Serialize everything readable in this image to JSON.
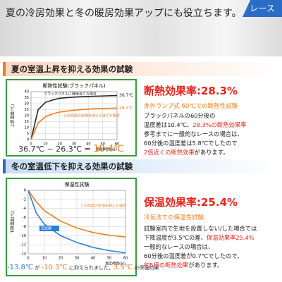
{
  "banner": {
    "title": "夏の冷房効果と冬の暖房効果アップにも役立ちます。",
    "tag": "レース"
  },
  "summer": {
    "header": "夏の室温上昇を抑える効果の試験",
    "chart": {
      "type": "line",
      "title": "断熱性試験(ブラックパネル)",
      "ylabel": "上昇温度(℃)",
      "xlabel": "照射時間(分)",
      "x": [
        0,
        5,
        10,
        15,
        20,
        30,
        40,
        50,
        60
      ],
      "xlim": [
        0,
        60
      ],
      "xticks": [
        0,
        10,
        20,
        30,
        40,
        50,
        60
      ],
      "ylim": [
        0,
        40
      ],
      "yticks": [
        0,
        5,
        10,
        15,
        20,
        25,
        30,
        35,
        40
      ],
      "grid": true,
      "series": [
        {
          "name": "ブラックパネルに直接当てた場合",
          "color": "#222222",
          "values": [
            0,
            25,
            31,
            33,
            34.5,
            35.5,
            36,
            36.4,
            36.7
          ],
          "end_label": "36.7℃"
        },
        {
          "name": "この商品の生地を挟んで当てた場合",
          "color": "#f07d1a",
          "values": [
            0,
            14,
            19,
            21.5,
            23,
            24.5,
            25.5,
            26,
            26.3
          ],
          "end_label": "26.3℃"
        }
      ]
    },
    "result": [
      {
        "text": "36.7℃ − 26.3℃ = ",
        "color": "#333333"
      },
      {
        "text": "10.4℃",
        "color": "#f07d1a"
      }
    ],
    "rate": "断熱効果率:28.3%",
    "method": "赤外ランプ式 60℃での断熱性試験",
    "body": [
      [
        {
          "text": "ブラックパネルの60分後の"
        }
      ],
      [
        {
          "text": "温度差は10.4℃、"
        },
        {
          "text": "28.3%の断熱効果率",
          "highlight": true
        }
      ],
      [
        {
          "text": "参考までに一般的なレースの場合は、"
        }
      ],
      [
        {
          "text": "60分後の温度差は5.8℃でしたので"
        }
      ],
      [
        {
          "text": "2倍近くの断熱効果",
          "highlight": true
        },
        {
          "text": "があります。"
        }
      ]
    ]
  },
  "winter": {
    "header": "冬の室温低下を抑える効果の試験",
    "chart": {
      "type": "line",
      "title": "保温性試験",
      "ylabel": "下降温度(℃)",
      "xlabel": "測定時間(分)",
      "x": [
        0,
        5,
        10,
        20,
        30,
        40,
        50,
        60
      ],
      "xlim": [
        0,
        60
      ],
      "xticks": [
        0,
        10,
        20,
        30,
        40,
        50,
        60
      ],
      "ylim": [
        -14,
        0
      ],
      "yticks": [
        0,
        -2,
        -4,
        -6,
        -8,
        -10,
        -12,
        -14
      ],
      "grid": true,
      "series": [
        {
          "name": "この商品の生地を挟んだ場合",
          "color": "#f07d1a",
          "values": [
            0,
            -2.5,
            -4.5,
            -6.8,
            -8.3,
            -9.3,
            -9.9,
            -10.3
          ]
        },
        {
          "name": "空試験",
          "color": "#2a7fd4",
          "values": [
            0,
            -5,
            -7.5,
            -10,
            -11.5,
            -12.6,
            -13.3,
            -13.8
          ]
        }
      ]
    },
    "result": [
      {
        "text": "-13.8℃",
        "color": "#2a7fd4",
        "big": true
      },
      {
        "text": " が ",
        "color": "#333333"
      },
      {
        "text": "-10.3℃",
        "color": "#f07d1a",
        "big": true
      },
      {
        "text": " に抑えられました。",
        "color": "#333333"
      },
      {
        "text": "3.5℃",
        "color": "#f07d1a",
        "big": true
      },
      {
        "text": " の保温効果",
        "color": "#333333"
      }
    ],
    "rate": "保温効果率:25.4%",
    "method": "冷気法での保温性試験",
    "body": [
      [
        {
          "text": "試験室内で生地を設置しない/した場合では"
        }
      ],
      [
        {
          "text": "下降温度が3.5℃の差、"
        },
        {
          "text": "保温効果率25.4%",
          "highlight": true
        }
      ],
      [
        {
          "text": "一般的なレースの場合は、"
        }
      ],
      [
        {
          "text": "60分後の温度差が0.7℃でしたので、"
        }
      ],
      [
        {
          "text": "約5倍の断熱効果",
          "highlight": true
        },
        {
          "text": "があります。"
        }
      ]
    ]
  }
}
